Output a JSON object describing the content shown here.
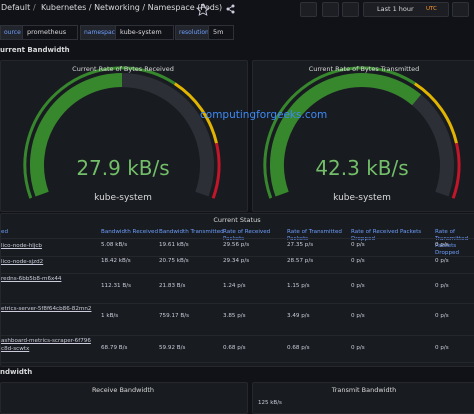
{
  "header": {
    "breadcrumb": [
      "Default",
      "/",
      "Kubernetes / Networking / Namespace (Pods)"
    ],
    "time_range": "Last 1 hour",
    "timezone": "UTC"
  },
  "variables": [
    {
      "label": "ource",
      "value": "prometheus"
    },
    {
      "label": "namespace",
      "value": "kube-system"
    },
    {
      "label": "resolution",
      "value": "5m"
    }
  ],
  "row_headers": [
    "urrent Bandwidth",
    "ndwidth"
  ],
  "gauges": [
    {
      "title": "Current Rate of Bytes Received",
      "value": "27.9 kB/s",
      "label": "kube-system"
    },
    {
      "title": "Current Rate of Bytes Transmitted",
      "value": "42.3 kB/s",
      "label": "kube-system"
    }
  ],
  "watermark": "computingforgeeks.com",
  "table": {
    "title": "Current Status",
    "columns": [
      "ed",
      "Bandwidth Received",
      "Bandwidth Transmitted",
      "Rate of Received Packets",
      "Rate of Transmitted Packets",
      "Rate of Received Packets Dropped",
      "Rate of Transmitted Packets Dropped"
    ],
    "rows": [
      [
        "lico-node-hljcb",
        "5.08 kB/s",
        "19.61 kB/s",
        "29.56 p/s",
        "27.35 p/s",
        "0 p/s",
        "0 p/s"
      ],
      [
        "lico-node-sjzd2",
        "18.42 kB/s",
        "20.75 kB/s",
        "29.34 p/s",
        "28.57 p/s",
        "0 p/s",
        "0 p/s"
      ],
      [
        "redns-6bb5b8-m6x44",
        "112.31 B/s",
        "21.83 B/s",
        "1.24 p/s",
        "1.15 p/s",
        "0 p/s",
        "0 p/s"
      ],
      [
        "etrics-server-5f8f64cb86-82mn2",
        "1 kB/s",
        "759.17 B/s",
        "3.85 p/s",
        "3.49 p/s",
        "0 p/s",
        "0 p/s"
      ],
      [
        "ashboard-metrics-scraper-6f796c8d-scwtx",
        "68.79 B/s",
        "59.92 B/s",
        "0.68 p/s",
        "0.68 p/s",
        "0 p/s",
        "0 p/s"
      ]
    ]
  },
  "bottom_panels": [
    {
      "title": "Receive Bandwidth"
    },
    {
      "title": "Transmit Bandwidth",
      "axis_label": "125 kB/s"
    }
  ]
}
